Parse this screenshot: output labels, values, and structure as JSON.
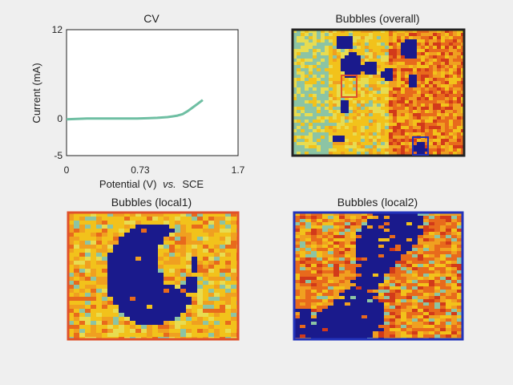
{
  "chart_data": [
    {
      "type": "line",
      "title": "CV",
      "xlabel_main": "Potential (V)",
      "xlabel_italic": "vs.",
      "xlabel_tail": "SCE",
      "ylabel": "Current (mA)",
      "xlim": [
        0,
        1.7
      ],
      "ylim": [
        -5,
        12
      ],
      "xticks": [
        "0",
        "0.73",
        "1.7"
      ],
      "xtick_values": [
        0,
        0.73,
        1.7
      ],
      "yticks": [
        "12",
        "0",
        "-5"
      ],
      "ytick_values": [
        12,
        0,
        -5
      ],
      "line_color": "#6fbfa3",
      "series": [
        {
          "x": [
            0,
            0.1,
            0.2,
            0.3,
            0.4,
            0.5,
            0.6,
            0.7,
            0.8,
            0.9,
            1.0,
            1.05,
            1.1,
            1.15,
            1.2,
            1.25,
            1.3,
            1.35
          ],
          "y": [
            -0.1,
            -0.05,
            0,
            0,
            0,
            0,
            0,
            0,
            0.05,
            0.1,
            0.2,
            0.3,
            0.4,
            0.6,
            1.0,
            1.5,
            2.0,
            2.5
          ]
        }
      ]
    },
    {
      "type": "heatmap",
      "title": "Bubbles (overall)",
      "border_color": "#222222",
      "markers": [
        {
          "name": "local1",
          "color": "#e0502a"
        },
        {
          "name": "local2",
          "color": "#2233bb"
        }
      ]
    },
    {
      "type": "heatmap",
      "title": "Bubbles (local1)",
      "border_color": "#e0502a"
    },
    {
      "type": "heatmap",
      "title": "Bubbles (local2)",
      "border_color": "#2233bb"
    }
  ],
  "palette": [
    "#1a1a8c",
    "#f2c21b",
    "#f0a020",
    "#e86a1c",
    "#d23a1a",
    "#8cc4a4",
    "#e8dc50"
  ]
}
